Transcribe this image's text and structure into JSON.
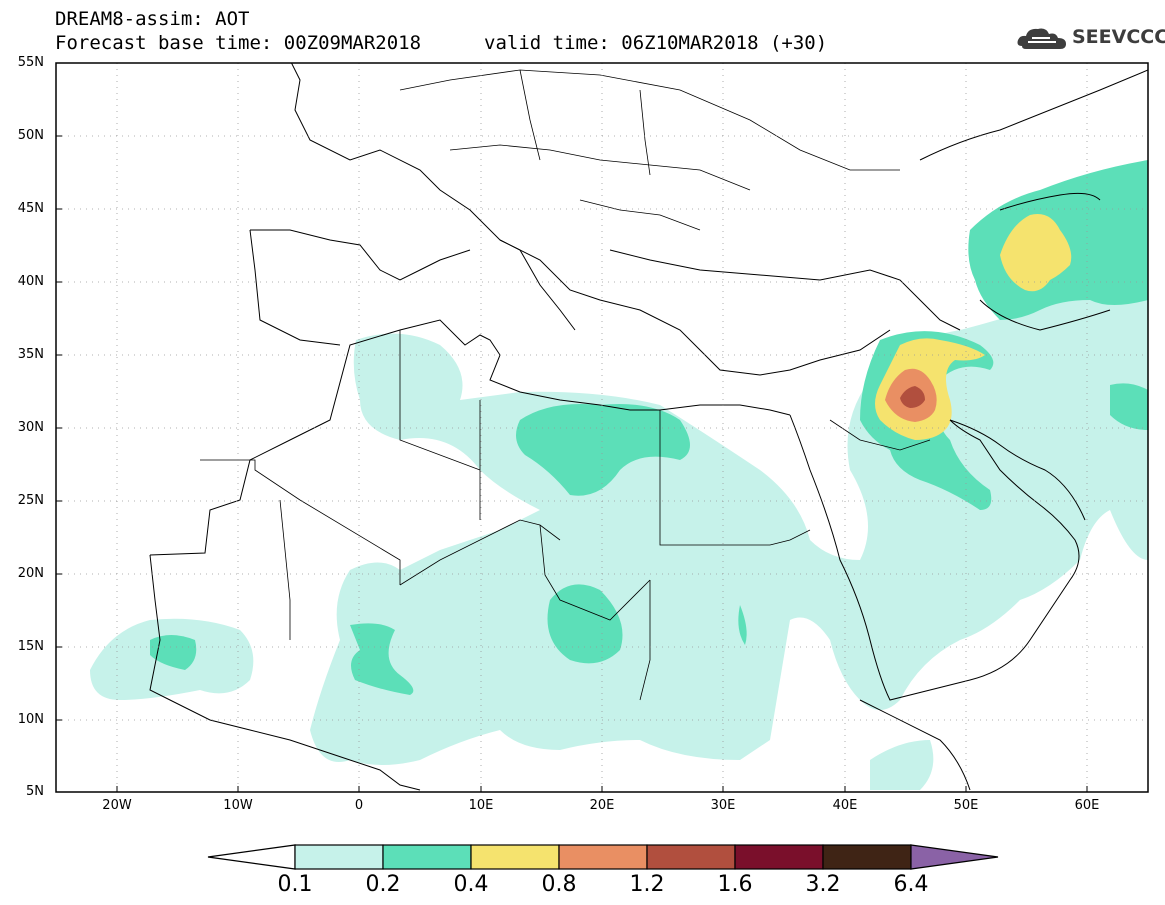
{
  "header": {
    "title": "DREAM8-assim: AOT",
    "base_time": "Forecast base time: 00Z09MAR2018",
    "valid_time": "valid time: 06Z10MAR2018 (+30)"
  },
  "logo": {
    "text": "SEEVCCC",
    "icon": "cloud-icon"
  },
  "map": {
    "lat_labels": [
      "55N",
      "50N",
      "45N",
      "40N",
      "35N",
      "30N",
      "25N",
      "20N",
      "15N",
      "10N",
      "5N"
    ],
    "lon_labels": [
      "20W",
      "10W",
      "0",
      "10E",
      "20E",
      "30E",
      "40E",
      "50E",
      "60E"
    ],
    "extent": {
      "lon_min": -25,
      "lon_max": 65,
      "lat_min": 5,
      "lat_max": 55
    }
  },
  "colorbar": {
    "labels": [
      "0.1",
      "0.2",
      "0.4",
      "0.8",
      "1.2",
      "1.6",
      "3.2",
      "6.4"
    ],
    "colors": [
      "#ffffff",
      "#c6f2ea",
      "#5cdfb8",
      "#f5e36e",
      "#e98f63",
      "#b14f3e",
      "#7a0f2b",
      "#3f2415",
      "#8a62a6"
    ]
  },
  "colors": {
    "aot_0_1": "#c6f2ea",
    "aot_0_2": "#5cdfb8",
    "aot_0_4": "#f5e36e",
    "aot_0_8": "#e98f63",
    "aot_1_2": "#b14f3e"
  }
}
